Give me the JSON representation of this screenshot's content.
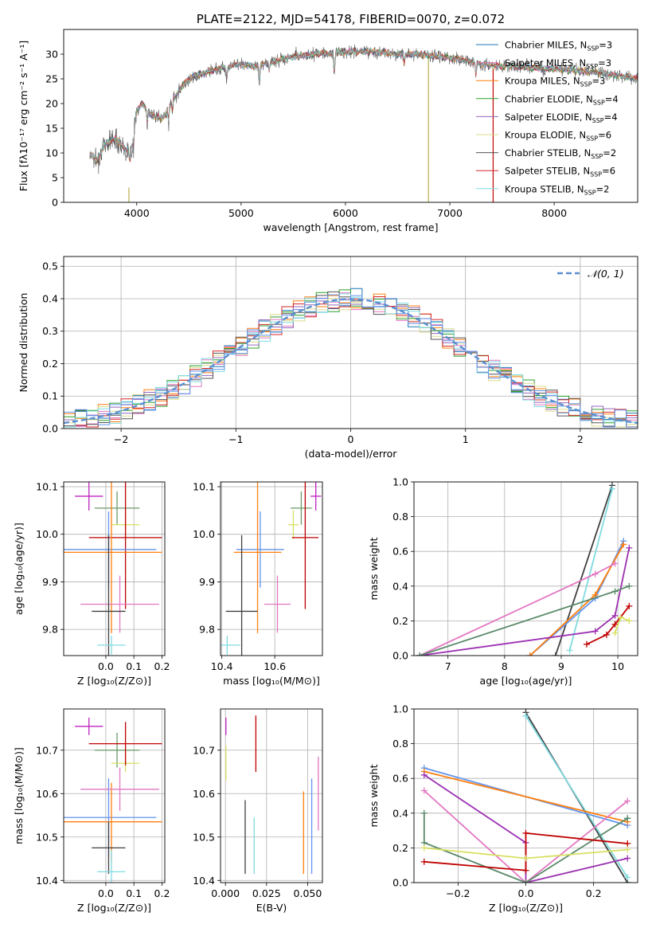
{
  "chart_data": [
    {
      "id": "spectrum",
      "type": "line",
      "title": "PLATE=2122, MJD=54178, FIBERID=0070, z=0.072",
      "xlabel": "wavelength [Angstrom, rest frame]",
      "ylabel": "Flux [fλ10⁻¹⁷ erg cm⁻² s⁻¹ A⁻¹]",
      "xlim": [
        3300,
        8800
      ],
      "ylim": [
        0,
        35
      ],
      "xticks": [
        4000,
        5000,
        6000,
        7000,
        8000
      ],
      "yticks": [
        0,
        5,
        10,
        15,
        20,
        25,
        30
      ],
      "grid": false,
      "legend_position": "upper-right",
      "continuum": {
        "x": [
          3550,
          3620,
          3700,
          3800,
          3900,
          3950,
          4000,
          4050,
          4150,
          4250,
          4350,
          4450,
          4550,
          4700,
          4850,
          5000,
          5150,
          5300,
          5500,
          5700,
          5900,
          6100,
          6300,
          6500,
          6700,
          6900,
          7100,
          7300,
          7500,
          7700,
          7900,
          8100,
          8300,
          8500,
          8800
        ],
        "y": [
          10,
          8.5,
          12,
          13,
          10.5,
          11,
          18.5,
          20,
          17.5,
          17,
          21,
          24,
          25.5,
          26.5,
          27.5,
          28,
          27.5,
          28.5,
          29.5,
          30,
          30.3,
          30.5,
          30.5,
          30,
          30,
          29.5,
          29,
          28,
          27.5,
          27.5,
          27,
          27,
          26.5,
          26,
          25
        ]
      },
      "series": [
        {
          "name": "Chabrier MILES, N_SSP=3",
          "color": "#1f77b4"
        },
        {
          "name": "Salpeter MILES, N_SSP=3",
          "color": "#e377c2"
        },
        {
          "name": "Kroupa MILES, N_SSP=3",
          "color": "#ff7f0e"
        },
        {
          "name": "Chabrier ELODIE, N_SSP=4",
          "color": "#2ca02c"
        },
        {
          "name": "Salpeter ELODIE, N_SSP=4",
          "color": "#9467bd"
        },
        {
          "name": "Kroupa ELODIE, N_SSP=6",
          "color": "#dbdb8d"
        },
        {
          "name": "Chabrier STELIB, N_SSP=2",
          "color": "#555555"
        },
        {
          "name": "Salpeter STELIB, N_SSP=6",
          "color": "#d62728"
        },
        {
          "name": "Kroupa STELIB, N_SSP=2",
          "color": "#7fdbe0"
        }
      ]
    },
    {
      "id": "residuals",
      "type": "line",
      "xlabel": "(data-model)/error",
      "ylabel": "Normed distribution",
      "xlim": [
        -2.5,
        2.5
      ],
      "ylim": [
        0,
        0.53
      ],
      "xticks": [
        -2,
        -1,
        0,
        1,
        2
      ],
      "yticks": [
        0.0,
        0.1,
        0.2,
        0.3,
        0.4,
        0.5
      ],
      "grid": true,
      "legend_position": "upper-right",
      "legend": "𝒩(0, 1)",
      "bin_width": 0.1
    },
    {
      "id": "age_vs_Z",
      "type": "scatter",
      "xlabel": "Z [log₁₀(Z/Z⊙)]",
      "ylabel": "age  [log₁₀(age/yr)]",
      "xlim": [
        -0.15,
        0.21
      ],
      "ylim": [
        9.745,
        10.11
      ],
      "xticks": [
        0.0,
        0.1,
        0.2
      ],
      "yticks": [
        9.8,
        9.9,
        10.0,
        10.1
      ],
      "points": [
        {
          "x": -0.06,
          "y": 10.08,
          "xerr": 0.05,
          "yerr": 0.03,
          "color": "#c020c0"
        },
        {
          "x": 0.04,
          "y": 10.055,
          "xerr": 0.08,
          "yerr": 0.035,
          "color": "#6a9a6a"
        },
        {
          "x": 0.07,
          "y": 10.02,
          "xerr": 0.05,
          "yerr": 0.03,
          "color": "#d8e060"
        },
        {
          "x": 0.07,
          "y": 9.993,
          "xerr": 0.13,
          "yerr": 0.15,
          "color": "#c00000"
        },
        {
          "x": 0.01,
          "y": 9.968,
          "xerr": 0.17,
          "yerr": 0.08,
          "color": "#6495ed"
        },
        {
          "x": 0.02,
          "y": 9.962,
          "xerr": 0.18,
          "yerr": 0.17,
          "color": "#ff7f0e"
        },
        {
          "x": 0.05,
          "y": 9.853,
          "xerr": 0.14,
          "yerr": 0.06,
          "color": "#e377c2"
        },
        {
          "x": 0.01,
          "y": 9.838,
          "xerr": 0.06,
          "yerr": 0.16,
          "color": "#404040"
        },
        {
          "x": 0.02,
          "y": 9.767,
          "xerr": 0.05,
          "yerr": 0.02,
          "color": "#7fdbe0"
        }
      ]
    },
    {
      "id": "age_vs_mass",
      "type": "scatter",
      "xlabel": "mass [log₁₀(M/M⊙)]",
      "xlim": [
        10.395,
        10.78
      ],
      "ylim": [
        9.745,
        10.11
      ],
      "xticks": [
        10.4,
        10.6
      ],
      "yticks": [
        9.8,
        9.9,
        10.0,
        10.1
      ],
      "points": [
        {
          "x": 10.755,
          "y": 10.08,
          "xerr": 0.02,
          "yerr": 0.03,
          "color": "#c020c0"
        },
        {
          "x": 10.7,
          "y": 10.055,
          "xerr": 0.04,
          "yerr": 0.035,
          "color": "#6a9a6a"
        },
        {
          "x": 10.67,
          "y": 10.02,
          "xerr": 0.02,
          "yerr": 0.03,
          "color": "#d8e060"
        },
        {
          "x": 10.715,
          "y": 9.993,
          "xerr": 0.05,
          "yerr": 0.15,
          "color": "#c00000"
        },
        {
          "x": 10.545,
          "y": 9.968,
          "xerr": 0.09,
          "yerr": 0.08,
          "color": "#6495ed"
        },
        {
          "x": 10.535,
          "y": 9.962,
          "xerr": 0.09,
          "yerr": 0.17,
          "color": "#ff7f0e"
        },
        {
          "x": 10.61,
          "y": 9.853,
          "xerr": 0.05,
          "yerr": 0.06,
          "color": "#e377c2"
        },
        {
          "x": 10.475,
          "y": 9.838,
          "xerr": 0.06,
          "yerr": 0.16,
          "color": "#404040"
        },
        {
          "x": 10.42,
          "y": 9.767,
          "xerr": 0.05,
          "yerr": 0.02,
          "color": "#7fdbe0"
        }
      ]
    },
    {
      "id": "weight_vs_age",
      "type": "line",
      "xlabel": "age  [log₁₀(age/yr)]",
      "ylabel": "mass weight",
      "xlim": [
        6.4,
        10.35
      ],
      "ylim": [
        0,
        1
      ],
      "xticks": [
        7,
        8,
        9,
        10
      ],
      "yticks": [
        0.0,
        0.2,
        0.4,
        0.6,
        0.8,
        1.0
      ],
      "grid": true,
      "series": [
        {
          "color": "#404040",
          "x": [
            8.9,
            9.9
          ],
          "y": [
            0.0,
            0.98
          ]
        },
        {
          "color": "#7fdbe0",
          "x": [
            9.15,
            9.9
          ],
          "y": [
            0.03,
            0.96
          ]
        },
        {
          "color": "#6495ed",
          "x": [
            8.45,
            9.6,
            10.1
          ],
          "y": [
            0.0,
            0.33,
            0.66
          ]
        },
        {
          "color": "#ff7f0e",
          "x": [
            8.45,
            9.6,
            10.1
          ],
          "y": [
            0.0,
            0.35,
            0.64
          ]
        },
        {
          "color": "#e377c2",
          "x": [
            6.5,
            9.6,
            9.95
          ],
          "y": [
            0.0,
            0.47,
            0.53
          ]
        },
        {
          "color": "#9b30b0",
          "x": [
            6.5,
            9.6,
            9.95,
            10.2
          ],
          "y": [
            0.0,
            0.14,
            0.23,
            0.62
          ]
        },
        {
          "color": "#5a8a6a",
          "x": [
            6.5,
            9.95,
            10.2
          ],
          "y": [
            0.0,
            0.37,
            0.4
          ]
        },
        {
          "color": "#c00000",
          "x": [
            9.45,
            9.8,
            9.95,
            10.2
          ],
          "y": [
            0.065,
            0.12,
            0.18,
            0.285
          ]
        },
        {
          "color": "#d8e060",
          "x": [
            9.95,
            10.05,
            10.2
          ],
          "y": [
            0.13,
            0.22,
            0.2
          ]
        }
      ]
    },
    {
      "id": "mass_vs_Z",
      "type": "scatter",
      "xlabel": "Z [log₁₀(Z/Z⊙)]",
      "ylabel": "mass [log₁₀(M/M⊙)]",
      "xlim": [
        -0.15,
        0.21
      ],
      "ylim": [
        10.395,
        10.795
      ],
      "xticks": [
        0.0,
        0.1,
        0.2
      ],
      "yticks": [
        10.4,
        10.5,
        10.6,
        10.7
      ],
      "points": [
        {
          "x": -0.06,
          "y": 10.755,
          "xerr": 0.05,
          "yerr": 0.02,
          "color": "#c020c0"
        },
        {
          "x": 0.04,
          "y": 10.7,
          "xerr": 0.08,
          "yerr": 0.04,
          "color": "#6a9a6a"
        },
        {
          "x": 0.07,
          "y": 10.67,
          "xerr": 0.05,
          "yerr": 0.02,
          "color": "#d8e060"
        },
        {
          "x": 0.07,
          "y": 10.715,
          "xerr": 0.13,
          "yerr": 0.05,
          "color": "#c00000"
        },
        {
          "x": 0.01,
          "y": 10.545,
          "xerr": 0.17,
          "yerr": 0.09,
          "color": "#6495ed"
        },
        {
          "x": 0.02,
          "y": 10.535,
          "xerr": 0.18,
          "yerr": 0.09,
          "color": "#ff7f0e"
        },
        {
          "x": 0.05,
          "y": 10.61,
          "xerr": 0.14,
          "yerr": 0.05,
          "color": "#e377c2"
        },
        {
          "x": 0.01,
          "y": 10.475,
          "xerr": 0.06,
          "yerr": 0.06,
          "color": "#404040"
        },
        {
          "x": 0.02,
          "y": 10.42,
          "xerr": 0.05,
          "yerr": 0.05,
          "color": "#7fdbe0"
        }
      ]
    },
    {
      "id": "mass_vs_EBV",
      "type": "scatter",
      "xlabel": "E(B-V)",
      "xlim": [
        -0.003,
        0.059
      ],
      "ylim": [
        10.395,
        10.795
      ],
      "xticks": [
        0.0,
        0.025,
        0.05
      ],
      "yticks": [
        10.4,
        10.5,
        10.6,
        10.7
      ],
      "points": [
        {
          "x": 0.0003,
          "y": 10.755,
          "yerr": 0.02,
          "color": "#c020c0"
        },
        {
          "x": 0.0003,
          "y": 10.67,
          "yerr": 0.04,
          "color": "#d8e060"
        },
        {
          "x": 0.0185,
          "y": 10.715,
          "yerr": 0.065,
          "color": "#c00000"
        },
        {
          "x": 0.012,
          "y": 10.5,
          "yerr": 0.085,
          "color": "#404040"
        },
        {
          "x": 0.0175,
          "y": 10.48,
          "yerr": 0.065,
          "color": "#7fdbe0"
        },
        {
          "x": 0.0475,
          "y": 10.51,
          "yerr": 0.095,
          "color": "#ff7f0e"
        },
        {
          "x": 0.0525,
          "y": 10.525,
          "yerr": 0.11,
          "color": "#6495ed"
        },
        {
          "x": 0.0565,
          "y": 10.6,
          "yerr": 0.085,
          "color": "#e377c2"
        }
      ]
    },
    {
      "id": "weight_vs_Z",
      "type": "line",
      "xlabel": "Z [log₁₀(Z/Z⊙)]",
      "ylabel": "mass weight",
      "xlim": [
        -0.33,
        0.33
      ],
      "ylim": [
        0,
        1
      ],
      "xticks": [
        -0.2,
        0.0,
        0.2
      ],
      "yticks": [
        0.0,
        0.2,
        0.4,
        0.6,
        0.8,
        1.0
      ],
      "grid": true,
      "series": [
        {
          "color": "#404040",
          "x": [
            0.0,
            0.3
          ],
          "y": [
            0.98,
            0.0
          ]
        },
        {
          "color": "#7fdbe0",
          "x": [
            0.0,
            0.3
          ],
          "y": [
            0.96,
            0.03
          ]
        },
        {
          "color": "#6495ed",
          "x": [
            -0.3,
            0.3
          ],
          "y": [
            0.66,
            0.33
          ]
        },
        {
          "color": "#ff7f0e",
          "x": [
            -0.3,
            0.3
          ],
          "y": [
            0.64,
            0.35
          ]
        },
        {
          "color": "#9b30b0",
          "x": [
            -0.3,
            0.0,
            0.0,
            0.3
          ],
          "y": [
            0.62,
            0.23,
            0.0,
            0.14
          ]
        },
        {
          "color": "#e377c2",
          "x": [
            -0.3,
            0.0,
            0.3
          ],
          "y": [
            0.53,
            0.0,
            0.47
          ]
        },
        {
          "color": "#5a8a6a",
          "x": [
            -0.3,
            -0.3,
            0.0,
            0.3,
            0.3
          ],
          "y": [
            0.4,
            0.23,
            0.0,
            0.37,
            0.37
          ]
        },
        {
          "color": "#c00000",
          "x": [
            -0.3,
            0.0,
            0.0,
            0.3
          ],
          "y": [
            0.12,
            0.07,
            0.285,
            0.225
          ]
        },
        {
          "color": "#d8e060",
          "x": [
            -0.3,
            0.0,
            0.3
          ],
          "y": [
            0.2,
            0.14,
            0.19
          ]
        }
      ]
    }
  ]
}
